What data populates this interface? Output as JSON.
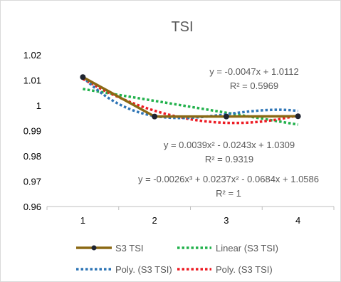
{
  "chart_data": {
    "type": "line",
    "title": "TSI",
    "xlabel": "",
    "ylabel": "",
    "x": [
      1,
      2,
      3,
      4
    ],
    "xlim": [
      0.5,
      4.5
    ],
    "ylim": [
      0.96,
      1.02
    ],
    "y_ticks": [
      "1.02",
      "1.01",
      "1",
      "0.99",
      "0.98",
      "0.97",
      "0.96"
    ],
    "x_ticks": [
      "1",
      "2",
      "3",
      "4"
    ],
    "grid": false,
    "legend_position": "bottom",
    "series": [
      {
        "name": "S3 TSI",
        "values": [
          1.0112,
          0.9956,
          0.9956,
          0.9957
        ],
        "color": "#8b6914",
        "marker_color": "#1f2430"
      }
    ],
    "trendlines": [
      {
        "name": "Linear (S3 TSI)",
        "kind": "linear",
        "coefficients": [
          1.0112,
          -0.0047
        ],
        "color": "#22b14c",
        "equation": "y = -0.0047x + 1.0112",
        "r2": "R² = 0.5969"
      },
      {
        "name": "Poly. (S3 TSI)",
        "kind": "poly2",
        "coefficients": [
          1.0309,
          -0.0243,
          0.0039
        ],
        "color": "#ed1c24",
        "equation": "y = 0.0039x² - 0.0243x + 1.0309",
        "r2": "R² = 0.9319"
      },
      {
        "name": "Poly. (S3 TSI)",
        "kind": "poly3",
        "coefficients": [
          1.0586,
          -0.0684,
          0.0237,
          -0.0026
        ],
        "color": "#2e75b6",
        "equation": "y = -0.0026x³ + 0.0237x² - 0.0684x + 1.0586",
        "r2": "R² = 1"
      }
    ]
  }
}
